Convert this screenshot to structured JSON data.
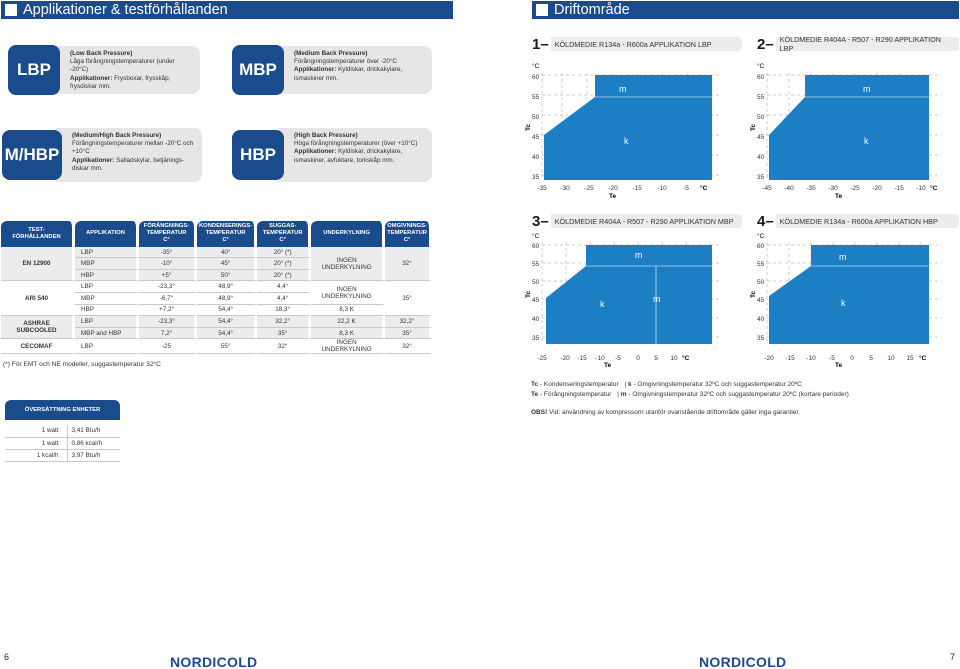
{
  "headers": {
    "left_title": "Applikationer & testförhållanden",
    "right_title": "Driftområde"
  },
  "applications": [
    {
      "code": "LBP",
      "title": "(Low Back Pressure)",
      "desc": "Låga förångningstemperaturer (under -20°C)",
      "app_label": "Applikationer:",
      "app_text": "Frysboxar, frysskåp, frysdiskar mm."
    },
    {
      "code": "MBP",
      "title": "(Medium Back Pressure)",
      "desc": "Förångningstemperaturer över -20°C",
      "app_label": "Applikationer:",
      "app_text": "Kyldiskar, drickakylare, ismaskiner mm."
    },
    {
      "code": "M/HBP",
      "title": "(Medium/High Back Pressure)",
      "desc": "Förångningstemperaturer mellan -20°C och +10°C",
      "app_label": "Applikationer:",
      "app_text": "Salladskylar, betjänings-diskar mm."
    },
    {
      "code": "HBP",
      "title": "(High Back Pressure)",
      "desc": "Höga förångningstemperaturer (över +10°C)",
      "app_label": "Applikationer:",
      "app_text": "Kyldiskar, drickakylare, ismaskiner, avfuktare, torkskåp mm."
    }
  ],
  "diagrams": [
    {
      "num": "1",
      "dash": "–",
      "title": "KÖLDMEDIE R134a - R600a APPLIKATION LBP",
      "y_unit": "°C",
      "y_axis_label": "Tc",
      "x_axis_label": "Te",
      "x_unit": "°C",
      "y_ticks": [
        "60",
        "55",
        "50",
        "45",
        "40",
        "35"
      ],
      "x_ticks": [
        "-35",
        "-30",
        "-25",
        "-20",
        "-15",
        "-10",
        "-5"
      ],
      "zones": [
        "m",
        "k"
      ]
    },
    {
      "num": "2",
      "dash": "–",
      "title": "KÖLDMEDIE R404A - R507 - R290 APPLIKATION LBP",
      "y_unit": "°C",
      "y_axis_label": "Tc",
      "x_axis_label": "Te",
      "x_unit": "°C",
      "y_ticks": [
        "60",
        "55",
        "50",
        "45",
        "40",
        "35"
      ],
      "x_ticks": [
        "-45",
        "-40",
        "-35",
        "-30",
        "-25",
        "-20",
        "-15",
        "-10"
      ],
      "zones": [
        "m",
        "k"
      ]
    },
    {
      "num": "3",
      "dash": "–",
      "title": "KÖLDMEDIE R404A - R507 - R290 APPLIKATION MBP",
      "y_unit": "°C",
      "y_axis_label": "Tc",
      "x_axis_label": "Te",
      "x_unit": "°C",
      "y_ticks": [
        "60",
        "55",
        "50",
        "45",
        "40",
        "35"
      ],
      "x_ticks": [
        "-25",
        "-20",
        "-15",
        "-10",
        "-5",
        "0",
        "5",
        "10"
      ],
      "zones": [
        "m",
        "k",
        "m"
      ]
    },
    {
      "num": "4",
      "dash": "–",
      "title": "KÖLDMEDIE R134a - R600a APPLIKATION HBP",
      "y_unit": "°C",
      "y_axis_label": "Tc",
      "x_axis_label": "Te",
      "x_unit": "°C",
      "y_ticks": [
        "60",
        "55",
        "50",
        "45",
        "40",
        "35"
      ],
      "x_ticks": [
        "-20",
        "-15",
        "-10",
        "-5",
        "0",
        "5",
        "10",
        "15"
      ],
      "zones": [
        "m",
        "k"
      ]
    }
  ],
  "conditions_table": {
    "headers": [
      "TEST-\nFÖRHÅLLANDEN",
      "APPLIKATION",
      "FÖRÅNGNINGS-\nTEMPERATUR\nC°",
      "KONDENSERINGS-\nTEMPERATUR\nC°",
      "SUGGAS-\nTEMPERATUR\nC°",
      "UNDERKYLNING",
      "OMGIVNINGS-\nTEMPERATUR\nC°"
    ],
    "en12900": {
      "label": "EN 12900",
      "underkylning": "INGEN UNDERKYLNING",
      "omg": "32°",
      "rows": [
        [
          "LBP",
          "-35°",
          "40°",
          "20° (*)"
        ],
        [
          "MBP",
          "-10°",
          "45°",
          "20° (*)"
        ],
        [
          "HBP",
          "+5°",
          "50°",
          "20° (*)"
        ]
      ]
    },
    "ari540": {
      "label": "ARI 540",
      "underkylning": "INGEN UNDERKYLNING",
      "omg": "35°",
      "rows": [
        [
          "LBP",
          "-23,3°",
          "48,9°",
          "4,4°"
        ],
        [
          "MBP",
          "-6,7°",
          "48,9°",
          "4,4°"
        ]
      ],
      "hbp": [
        "HBP",
        "+7,2°",
        "54,4°",
        "18,3°",
        "8,3 K"
      ]
    },
    "ashrae": {
      "label": "ASHRAE SUBCOOLED",
      "rows": [
        [
          "LBP",
          "-23,3°",
          "54,4°",
          "32,2°",
          "22,2 K",
          "32,2°"
        ],
        [
          "MBP and HBP",
          "7,2°",
          "54,4°",
          "35°",
          "8,3 K",
          "35°"
        ]
      ]
    },
    "cecomaf": {
      "label": "CECOMAF",
      "row": [
        "LBP",
        "-25",
        "55°",
        "32°",
        "INGEN UNDERKYLNING",
        "32°"
      ]
    }
  },
  "footnote": "(*) För EMT och NE modeller, suggastemperatur 32°C",
  "conversion": {
    "title": "ÖVERSÄTTNING ENHETER",
    "rows": [
      [
        "1 watt",
        "3,41 Btu/h"
      ],
      [
        "1 watt",
        "0,86 kcal/h"
      ],
      [
        "1 kcal/h",
        "3,97 Btu/h"
      ]
    ]
  },
  "legend": {
    "tc_label": "Tc",
    "tc_text": " - Kondenseringstemperatur",
    "k_label": "k",
    "k_text": " - Omgivningstemperatur 32ºC och suggastemperatur 20ºC",
    "te_label": "Te",
    "te_text": " - Förångningstemperatur",
    "m_label": "m",
    "m_text": " - Omgivningstemperatur 32ºC och suggastemperatur 20ºC (kortare perioder)",
    "obs_label": "OBS!",
    "obs_text": " Vid: användning av kompressorn utanför ovanstående driftområde gäller inga garantier."
  },
  "footer": {
    "page_left": "6",
    "page_right": "7",
    "brand": "NORDICOLD"
  },
  "colors": {
    "primary": "#1a4b8c",
    "zone": "#1c7fc4",
    "gray": "#e6e6e6"
  }
}
